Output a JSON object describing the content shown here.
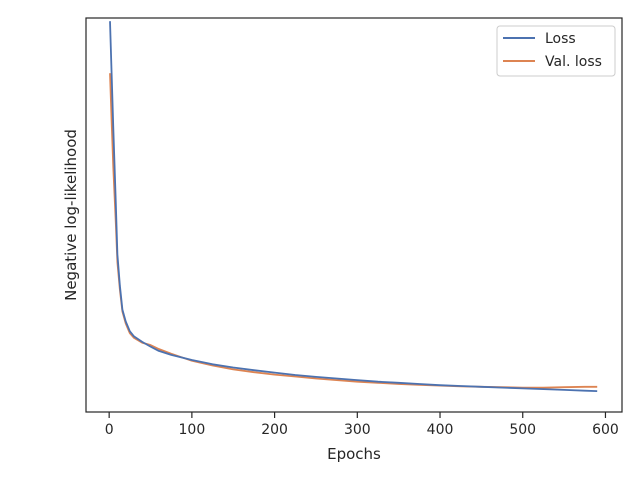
{
  "chart_data": {
    "type": "line",
    "title": "",
    "xlabel": "Epochs",
    "ylabel": "Negative log-likelihood",
    "xlim": [
      -28,
      620
    ],
    "ylim": [
      0,
      1
    ],
    "xticks": [
      0,
      100,
      200,
      300,
      400,
      500,
      600
    ],
    "yticks_shown": false,
    "grid": false,
    "legend": "top-right",
    "series": [
      {
        "name": "Loss",
        "color": "#4c72b0",
        "x": [
          1,
          3,
          5,
          8,
          10,
          13,
          16,
          20,
          25,
          30,
          40,
          50,
          60,
          75,
          100,
          125,
          150,
          175,
          200,
          225,
          250,
          275,
          300,
          325,
          350,
          375,
          400,
          425,
          450,
          475,
          500,
          525,
          550,
          575,
          590
        ],
        "y": [
          0.992,
          0.86,
          0.72,
          0.53,
          0.4,
          0.32,
          0.26,
          0.23,
          0.205,
          0.192,
          0.178,
          0.166,
          0.155,
          0.145,
          0.132,
          0.121,
          0.113,
          0.106,
          0.1,
          0.094,
          0.089,
          0.085,
          0.081,
          0.077,
          0.074,
          0.071,
          0.068,
          0.066,
          0.064,
          0.062,
          0.06,
          0.058,
          0.056,
          0.054,
          0.053
        ]
      },
      {
        "name": "Val. loss",
        "color": "#dd8452",
        "x": [
          1,
          3,
          5,
          8,
          10,
          13,
          16,
          20,
          25,
          30,
          40,
          50,
          60,
          75,
          100,
          125,
          150,
          175,
          200,
          225,
          250,
          275,
          300,
          325,
          350,
          375,
          400,
          425,
          450,
          475,
          500,
          525,
          550,
          575,
          590
        ],
        "y": [
          0.86,
          0.74,
          0.62,
          0.48,
          0.38,
          0.31,
          0.255,
          0.225,
          0.2,
          0.188,
          0.176,
          0.17,
          0.16,
          0.148,
          0.13,
          0.118,
          0.108,
          0.101,
          0.095,
          0.09,
          0.085,
          0.081,
          0.077,
          0.074,
          0.071,
          0.069,
          0.067,
          0.065,
          0.064,
          0.063,
          0.062,
          0.062,
          0.063,
          0.064,
          0.064
        ]
      }
    ]
  }
}
